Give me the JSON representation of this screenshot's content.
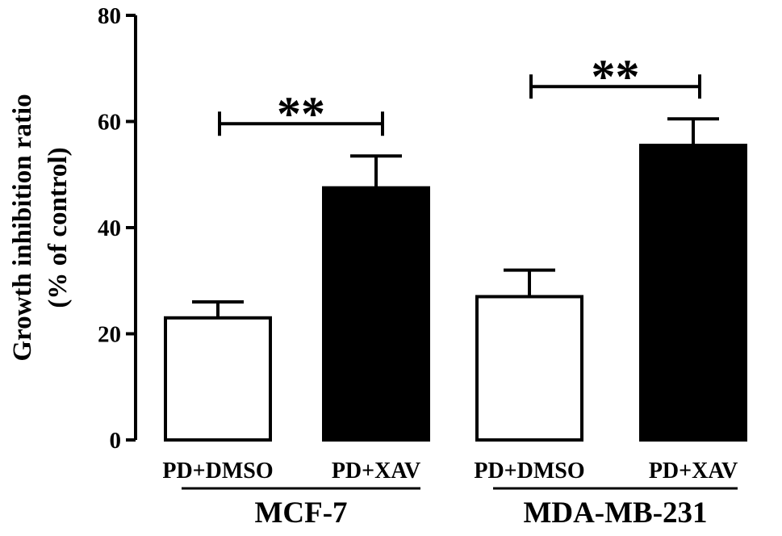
{
  "chart_data": {
    "type": "bar",
    "title": "",
    "ylabel_lines": [
      "Growth inhibition ratio",
      "(% of control)"
    ],
    "ylim": [
      0,
      80
    ],
    "yticks": [
      0,
      20,
      40,
      60,
      80
    ],
    "groups": [
      {
        "label": "MCF-7",
        "bars": [
          {
            "label": "PD+DMSO",
            "value": 23,
            "error": 3,
            "fill": "#ffffff"
          },
          {
            "label": "PD+XAV",
            "value": 47.5,
            "error": 6,
            "fill": "#000000"
          }
        ],
        "significance": "**"
      },
      {
        "label": "MDA-MB-231",
        "bars": [
          {
            "label": "PD+DMSO",
            "value": 27,
            "error": 5,
            "fill": "#ffffff"
          },
          {
            "label": "PD+XAV",
            "value": 55.5,
            "error": 5,
            "fill": "#000000"
          }
        ],
        "significance": "**"
      }
    ]
  }
}
